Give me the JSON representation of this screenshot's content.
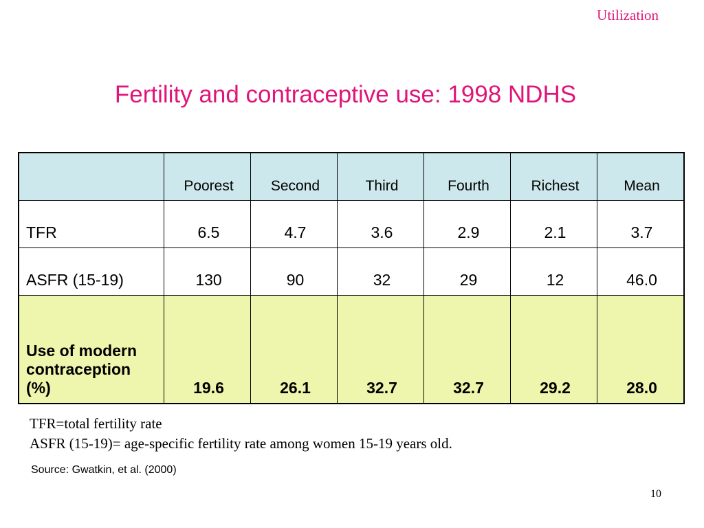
{
  "header": {
    "section": "Utilization"
  },
  "title": "Fertility and contraceptive use: 1998 NDHS",
  "table": {
    "columns": [
      "",
      "Poorest",
      "Second",
      "Third",
      "Fourth",
      "Richest",
      "Mean"
    ],
    "rows": [
      {
        "label": "TFR",
        "values": [
          "6.5",
          "4.7",
          "3.6",
          "2.9",
          "2.1",
          "3.7"
        ]
      },
      {
        "label": "ASFR (15-19)",
        "values": [
          "130",
          "90",
          "32",
          "29",
          "12",
          "46.0"
        ]
      },
      {
        "label": "Use of modern contraception (%)",
        "values": [
          "19.6",
          "26.1",
          "32.7",
          "32.7",
          "29.2",
          "28.0"
        ],
        "highlight": true
      }
    ],
    "header_bg": "#cde8ec",
    "highlight_bg": "#eef6ad"
  },
  "notes": [
    "TFR=total fertility rate",
    "ASFR (15-19)= age-specific fertility rate among women 15-19 years old."
  ],
  "source": "Source: Gwatkin, et al. (2000)",
  "page_number": "10",
  "accent_color": "#e0157a"
}
